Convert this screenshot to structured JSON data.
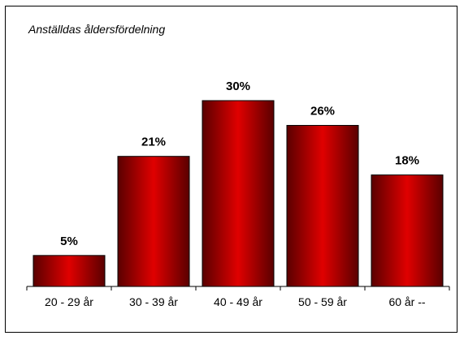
{
  "chart_data": {
    "type": "bar",
    "title": "Anställdas åldersfördelning",
    "categories": [
      "20 - 29 år",
      "30 - 39 år",
      "40 - 49 år",
      "50 - 59 år",
      "60 år --"
    ],
    "values": [
      5,
      21,
      30,
      26,
      18
    ],
    "data_labels": [
      "5%",
      "21%",
      "30%",
      "26%",
      "18%"
    ],
    "ylim": [
      0,
      30
    ],
    "grid": false,
    "legend": "none",
    "bar_color": "#e00000",
    "bar_color_dark": "#5a0000"
  }
}
